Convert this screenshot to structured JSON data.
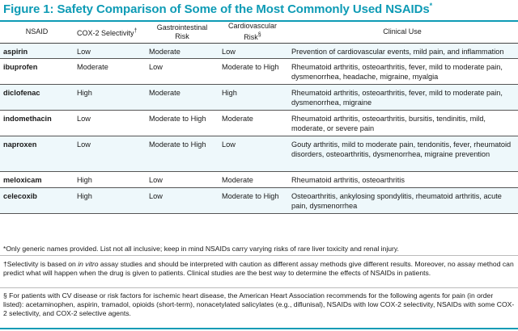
{
  "title": {
    "text": "Figure 1: Safety Comparison of Some of the Most Commonly Used NSAIDs",
    "mark": "*"
  },
  "table": {
    "headers": {
      "nsaid": "NSAID",
      "cox2": "COX-2 Selectivity",
      "cox2_mark": "†",
      "gi_line1": "Gastrointestinal",
      "gi_line2": "Risk",
      "cv_line1": "Cardiovascular",
      "cv_line2": "Risk",
      "cv_mark": "§",
      "use": "Clinical Use"
    },
    "rows": [
      {
        "name": "aspirin",
        "cox2": "Low",
        "gi": "Moderate",
        "cv": "Low",
        "use": "Prevention of cardiovascular events, mild pain, and inflammation"
      },
      {
        "name": "ibuprofen",
        "cox2": "Moderate",
        "gi": "Low",
        "cv": "Moderate to High",
        "use": "Rheumatoid arthritis, osteoarthritis, fever, mild to moderate pain, dysmenorrhea, headache, migraine, myalgia"
      },
      {
        "name": "diclofenac",
        "cox2": "High",
        "gi": "Moderate",
        "cv": "High",
        "use": "Rheumatoid arthritis, osteoarthritis, fever, mild to moderate pain, dysmenorrhea, migraine"
      },
      {
        "name": "indomethacin",
        "cox2": "Low",
        "gi": "Moderate to High",
        "cv": "Moderate",
        "use": "Rheumatoid arthritis, osteoarthritis, bursitis, tendinitis, mild, moderate, or severe pain"
      },
      {
        "name": "naproxen",
        "cox2": "Low",
        "gi": "Moderate to High",
        "cv": "Low",
        "use": "Gouty arthritis, mild to moderate pain, tendonitis, fever, rheumatoid disorders, osteoarthritis, dysmenorrhea, migraine prevention"
      },
      {
        "name": "meloxicam",
        "cox2": "High",
        "gi": "Low",
        "cv": "Moderate",
        "use": "Rheumatoid arthritis, osteoarthritis"
      },
      {
        "name": "celecoxib",
        "cox2": "High",
        "gi": "Low",
        "cv": "Moderate to High",
        "use": "Osteoarthritis, ankylosing spondylitis, rheumatoid arthritis, acute pain, dysmenorrhea"
      }
    ]
  },
  "footnotes": {
    "note1": "*Only generic names provided. List not all inclusive; keep in mind NSAIDs carry varying risks of rare liver toxicity and renal injury.",
    "note2_pre": "†Selectivity is based on ",
    "note2_em": "in vitro",
    "note2_post": " assay studies and should be interpreted with caution as different assay methods give different results. Moreover, no assay method can predict what will happen when the drug is given to patients. Clinical studies are the best way to determine the effects of NSAIDs in patients.",
    "note3": "§ For patients with CV disease or risk factors for ischemic heart disease, the American Heart Association recommends for the following agents for pain (in order listed): acetaminophen, aspirin, tramadol, opioids (short-term), nonacetylated salicylates (e.g., diflunisal), NSAIDs with low COX-2 selectivity, NSAIDs with some COX-2 selectivity, and COX-2 selective agents."
  },
  "colors": {
    "accent": "#0e9bb5",
    "row_shade": "#eef8fb"
  }
}
